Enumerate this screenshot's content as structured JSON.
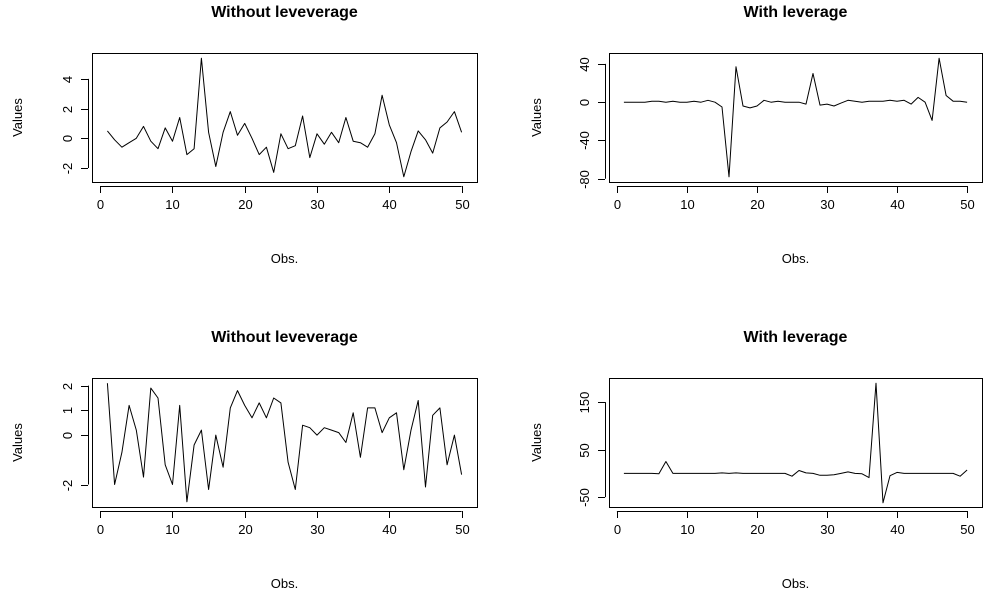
{
  "chart_data": [
    {
      "type": "line",
      "title": "Without leveverage",
      "xlabel": "Obs.",
      "ylabel": "Values",
      "xlim": [
        1,
        50
      ],
      "ylim": [
        -2.6,
        5.4
      ],
      "x_ticks": [
        0,
        10,
        20,
        30,
        40,
        50
      ],
      "y_ticks": [
        -2,
        0,
        2,
        4
      ],
      "x": [
        1,
        2,
        3,
        4,
        5,
        6,
        7,
        8,
        9,
        10,
        11,
        12,
        13,
        14,
        15,
        16,
        17,
        18,
        19,
        20,
        21,
        22,
        23,
        24,
        25,
        26,
        27,
        28,
        29,
        30,
        31,
        32,
        33,
        34,
        35,
        36,
        37,
        38,
        39,
        40,
        41,
        42,
        43,
        44,
        45,
        46,
        47,
        48,
        49,
        50
      ],
      "values": [
        0.5,
        -0.1,
        -0.6,
        -0.3,
        0.0,
        0.8,
        -0.2,
        -0.7,
        0.7,
        -0.2,
        1.4,
        -1.1,
        -0.7,
        5.4,
        0.4,
        -1.9,
        0.4,
        1.8,
        0.2,
        1.0,
        0.0,
        -1.1,
        -0.6,
        -2.3,
        0.3,
        -0.7,
        -0.5,
        1.5,
        -1.3,
        0.3,
        -0.4,
        0.4,
        -0.3,
        1.4,
        -0.2,
        -0.3,
        -0.6,
        0.3,
        2.9,
        0.9,
        -0.3,
        -2.6,
        -0.9,
        0.5,
        -0.1,
        -1.0,
        0.7,
        1.1,
        1.8,
        0.4
      ]
    },
    {
      "type": "line",
      "title": "With leverage",
      "xlabel": "Obs.",
      "ylabel": "Values",
      "xlim": [
        1,
        50
      ],
      "ylim": [
        -78,
        46
      ],
      "x_ticks": [
        0,
        10,
        20,
        30,
        40,
        50
      ],
      "y_ticks": [
        -80,
        -40,
        0,
        40
      ],
      "x": [
        1,
        2,
        3,
        4,
        5,
        6,
        7,
        8,
        9,
        10,
        11,
        12,
        13,
        14,
        15,
        16,
        17,
        18,
        19,
        20,
        21,
        22,
        23,
        24,
        25,
        26,
        27,
        28,
        29,
        30,
        31,
        32,
        33,
        34,
        35,
        36,
        37,
        38,
        39,
        40,
        41,
        42,
        43,
        44,
        45,
        46,
        47,
        48,
        49,
        50
      ],
      "values": [
        0,
        0,
        0,
        0,
        1,
        1,
        0,
        1,
        0,
        0,
        1,
        0,
        2,
        0,
        -5,
        -78,
        37,
        -4,
        -6,
        -4,
        2,
        0,
        1,
        0,
        0,
        0,
        -2,
        30,
        -3,
        -2,
        -4,
        -1,
        2,
        1,
        0,
        1,
        1,
        1,
        2,
        1,
        2,
        -2,
        5,
        0,
        -19,
        46,
        7,
        1,
        1,
        0
      ]
    },
    {
      "type": "line",
      "title": "Without leveverage",
      "xlabel": "Obs.",
      "ylabel": "Values",
      "xlim": [
        1,
        50
      ],
      "ylim": [
        -2.7,
        2.1
      ],
      "x_ticks": [
        0,
        10,
        20,
        30,
        40,
        50
      ],
      "y_ticks": [
        -2,
        0,
        1,
        2
      ],
      "x": [
        1,
        2,
        3,
        4,
        5,
        6,
        7,
        8,
        9,
        10,
        11,
        12,
        13,
        14,
        15,
        16,
        17,
        18,
        19,
        20,
        21,
        22,
        23,
        24,
        25,
        26,
        27,
        28,
        29,
        30,
        31,
        32,
        33,
        34,
        35,
        36,
        37,
        38,
        39,
        40,
        41,
        42,
        43,
        44,
        45,
        46,
        47,
        48,
        49,
        50
      ],
      "values": [
        2.1,
        -2.0,
        -0.7,
        1.2,
        0.2,
        -1.7,
        1.9,
        1.5,
        -1.2,
        -2.0,
        1.2,
        -2.7,
        -0.4,
        0.2,
        -2.2,
        0.0,
        -1.3,
        1.1,
        1.8,
        1.2,
        0.7,
        1.3,
        0.7,
        1.5,
        1.3,
        -1.1,
        -2.2,
        0.4,
        0.3,
        0.0,
        0.3,
        0.2,
        0.1,
        -0.3,
        0.9,
        -0.9,
        1.1,
        1.1,
        0.1,
        0.7,
        0.9,
        -1.4,
        0.2,
        1.4,
        -2.1,
        0.8,
        1.1,
        -1.2,
        0.0,
        -1.6
      ]
    },
    {
      "type": "line",
      "title": "With leverage",
      "xlabel": "Obs.",
      "ylabel": "Values",
      "xlim": [
        1,
        50
      ],
      "ylim": [
        -60,
        190
      ],
      "x_ticks": [
        0,
        10,
        20,
        30,
        40,
        50
      ],
      "y_ticks": [
        -50,
        50,
        150
      ],
      "x": [
        1,
        2,
        3,
        4,
        5,
        6,
        7,
        8,
        9,
        10,
        11,
        12,
        13,
        14,
        15,
        16,
        17,
        18,
        19,
        20,
        21,
        22,
        23,
        24,
        25,
        26,
        27,
        28,
        29,
        30,
        31,
        32,
        33,
        34,
        35,
        36,
        37,
        38,
        39,
        40,
        41,
        42,
        43,
        44,
        45,
        46,
        47,
        48,
        49,
        50
      ],
      "values": [
        0,
        0,
        0,
        0,
        0,
        -1,
        25,
        0,
        0,
        0,
        0,
        0,
        0,
        0,
        1,
        0,
        1,
        0,
        0,
        0,
        0,
        0,
        0,
        0,
        -6,
        6,
        1,
        0,
        -4,
        -4,
        -3,
        0,
        3,
        0,
        -1,
        -9,
        190,
        -62,
        -5,
        2,
        0,
        0,
        0,
        0,
        0,
        0,
        0,
        0,
        -6,
        7
      ]
    }
  ]
}
